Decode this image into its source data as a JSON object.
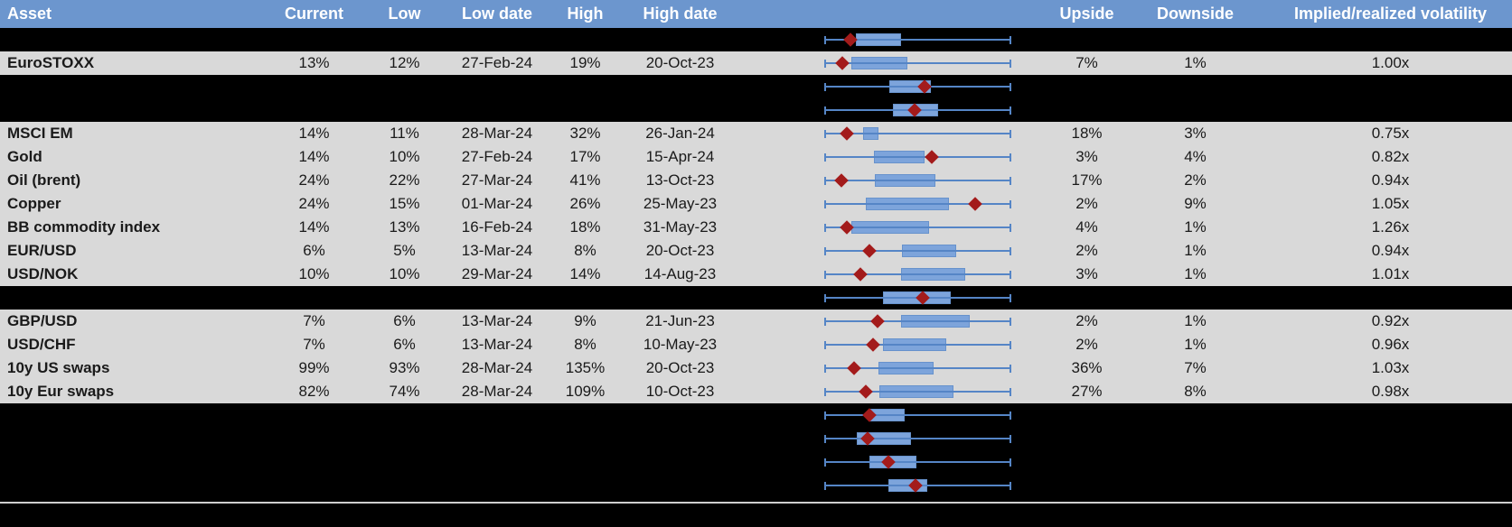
{
  "header": {
    "labels": {
      "asset": "Asset",
      "current": "Current",
      "low": "Low",
      "low_date": "Low date",
      "high": "High",
      "high_date": "High date",
      "plot": "",
      "upside": "Upside",
      "downside": "Downside",
      "implied": "Implied/realized volatility"
    }
  },
  "colors": {
    "header_bg": "#6C96CE",
    "header_text": "#FFFFFF",
    "row_bg": "#D9D9D9",
    "redacted_bg": "#000000",
    "text": "#1A1A1A",
    "box_fill": "#7DA4DB",
    "box_border": "#6792CC",
    "whisker": "#5585C6",
    "marker": "#A31B1B",
    "separator": "#CFCFCF"
  },
  "boxplot_legend": {
    "whisker_range": "low-high range",
    "marker": "current value diamond"
  },
  "rows": [
    {
      "type": "redacted",
      "box": {
        "start_pct": 16.6,
        "end_pct": 41.0,
        "marker_pct": 13.7
      }
    },
    {
      "type": "data",
      "asset": "EuroSTOXX",
      "current": "13%",
      "low": "12%",
      "low_date": "27-Feb-24",
      "high": "19%",
      "high_date": "20-Oct-23",
      "upside": "7%",
      "downside": "1%",
      "implied": "1.00x",
      "box": {
        "start_pct": 14.1,
        "end_pct": 44.4,
        "marker_pct": 9.3
      }
    },
    {
      "type": "redacted",
      "box": {
        "start_pct": 34.6,
        "end_pct": 57.1,
        "marker_pct": 53.7
      }
    },
    {
      "type": "redacted",
      "box": {
        "start_pct": 36.6,
        "end_pct": 61.0,
        "marker_pct": 48.3
      }
    },
    {
      "type": "data",
      "asset": "MSCI EM",
      "current": "14%",
      "low": "11%",
      "low_date": "28-Mar-24",
      "high": "32%",
      "high_date": "26-Jan-24",
      "upside": "18%",
      "downside": "3%",
      "implied": "0.75x",
      "box": {
        "start_pct": 20.5,
        "end_pct": 28.8,
        "marker_pct": 11.7
      }
    },
    {
      "type": "data",
      "asset": "Gold",
      "current": "14%",
      "low": "10%",
      "low_date": "27-Feb-24",
      "high": "17%",
      "high_date": "15-Apr-24",
      "upside": "3%",
      "downside": "4%",
      "implied": "0.82x",
      "box": {
        "start_pct": 26.3,
        "end_pct": 53.7,
        "marker_pct": 57.6
      }
    },
    {
      "type": "data",
      "asset": "Oil (brent)",
      "current": "24%",
      "low": "22%",
      "low_date": "27-Mar-24",
      "high": "41%",
      "high_date": "13-Oct-23",
      "upside": "17%",
      "downside": "2%",
      "implied": "0.94x",
      "box": {
        "start_pct": 26.8,
        "end_pct": 59.5,
        "marker_pct": 8.8
      }
    },
    {
      "type": "data",
      "asset": "Copper",
      "current": "24%",
      "low": "15%",
      "low_date": "01-Mar-24",
      "high": "26%",
      "high_date": "25-May-23",
      "upside": "2%",
      "downside": "9%",
      "implied": "1.05x",
      "box": {
        "start_pct": 22.0,
        "end_pct": 66.8,
        "marker_pct": 81.0
      }
    },
    {
      "type": "data",
      "asset": "BB commodity index",
      "current": "14%",
      "low": "13%",
      "low_date": "16-Feb-24",
      "high": "18%",
      "high_date": "31-May-23",
      "upside": "4%",
      "downside": "1%",
      "implied": "1.26x",
      "box": {
        "start_pct": 14.1,
        "end_pct": 56.1,
        "marker_pct": 11.7
      }
    },
    {
      "type": "data",
      "asset": "EUR/USD",
      "current": "6%",
      "low": "5%",
      "low_date": "13-Mar-24",
      "high": "8%",
      "high_date": "20-Oct-23",
      "upside": "2%",
      "downside": "1%",
      "implied": "0.94x",
      "box": {
        "start_pct": 41.5,
        "end_pct": 70.7,
        "marker_pct": 23.9
      }
    },
    {
      "type": "data",
      "asset": "USD/NOK",
      "current": "10%",
      "low": "10%",
      "low_date": "29-Mar-24",
      "high": "14%",
      "high_date": "14-Aug-23",
      "upside": "3%",
      "downside": "1%",
      "implied": "1.01x",
      "box": {
        "start_pct": 41.0,
        "end_pct": 75.6,
        "marker_pct": 19.0
      }
    },
    {
      "type": "redacted",
      "box": {
        "start_pct": 31.2,
        "end_pct": 67.8,
        "marker_pct": 52.7
      }
    },
    {
      "type": "data",
      "asset": "GBP/USD",
      "current": "7%",
      "low": "6%",
      "low_date": "13-Mar-24",
      "high": "9%",
      "high_date": "21-Jun-23",
      "upside": "2%",
      "downside": "1%",
      "implied": "0.92x",
      "box": {
        "start_pct": 41.0,
        "end_pct": 78.0,
        "marker_pct": 28.3
      }
    },
    {
      "type": "data",
      "asset": "USD/CHF",
      "current": "7%",
      "low": "6%",
      "low_date": "13-Mar-24",
      "high": "8%",
      "high_date": "10-May-23",
      "upside": "2%",
      "downside": "1%",
      "implied": "0.96x",
      "box": {
        "start_pct": 31.2,
        "end_pct": 65.4,
        "marker_pct": 25.9
      }
    },
    {
      "type": "data",
      "asset": "10y US swaps",
      "current": "99%",
      "low": "93%",
      "low_date": "28-Mar-24",
      "high": "135%",
      "high_date": "20-Oct-23",
      "upside": "36%",
      "downside": "7%",
      "implied": "1.03x",
      "box": {
        "start_pct": 28.8,
        "end_pct": 58.5,
        "marker_pct": 15.6
      }
    },
    {
      "type": "data",
      "asset": "10y Eur swaps",
      "current": "82%",
      "low": "74%",
      "low_date": "28-Mar-24",
      "high": "109%",
      "high_date": "10-Oct-23",
      "upside": "27%",
      "downside": "8%",
      "implied": "0.98x",
      "box": {
        "start_pct": 29.3,
        "end_pct": 69.3,
        "marker_pct": 22.0
      }
    },
    {
      "type": "redacted",
      "box": {
        "start_pct": 24.4,
        "end_pct": 42.9,
        "marker_pct": 23.9
      }
    },
    {
      "type": "redacted",
      "box": {
        "start_pct": 17.1,
        "end_pct": 46.3,
        "marker_pct": 22.9
      }
    },
    {
      "type": "redacted",
      "box": {
        "start_pct": 23.9,
        "end_pct": 49.3,
        "marker_pct": 34.1
      }
    },
    {
      "type": "redacted",
      "box": {
        "start_pct": 34.1,
        "end_pct": 55.1,
        "marker_pct": 48.8
      }
    }
  ]
}
